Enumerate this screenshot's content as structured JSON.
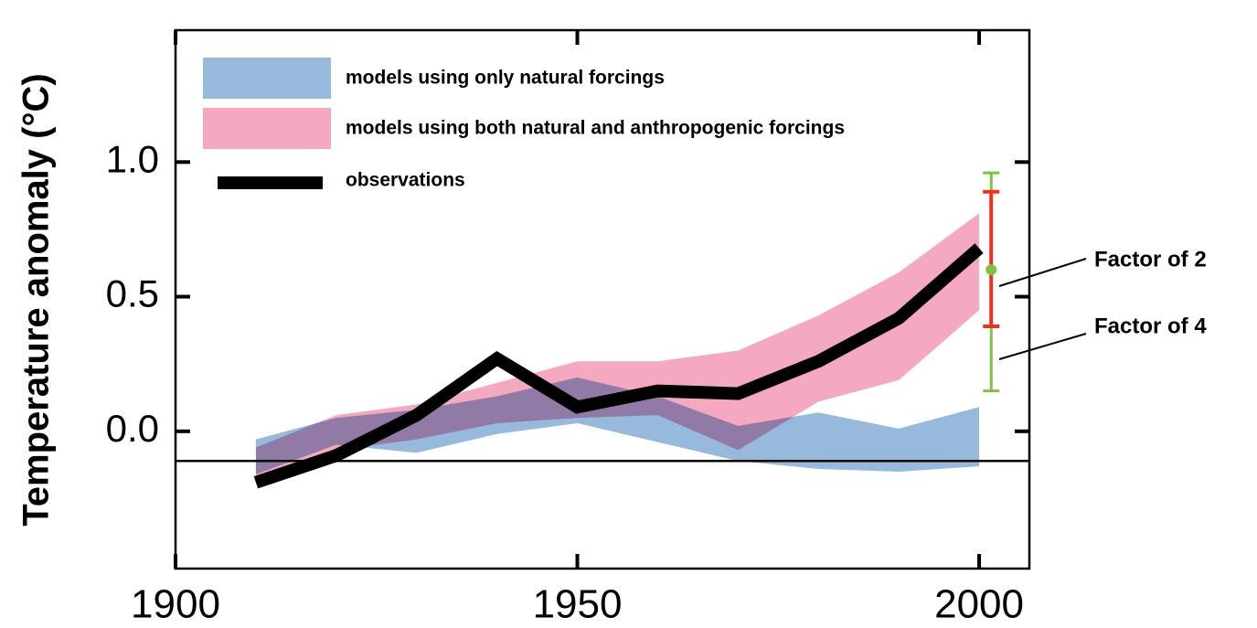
{
  "chart_data": {
    "type": "band_line",
    "y_label": "Temperature anomaly (°C)",
    "x": [
      1910,
      1920,
      1930,
      1940,
      1950,
      1960,
      1970,
      1980,
      1990,
      2000
    ],
    "bands": [
      {
        "name": "models using only natural forcings",
        "color": "#97b9dc",
        "lower": [
          -0.16,
          -0.05,
          -0.08,
          -0.01,
          0.03,
          -0.04,
          -0.11,
          -0.14,
          -0.15,
          -0.13
        ],
        "upper": [
          -0.03,
          0.05,
          0.08,
          0.13,
          0.2,
          0.13,
          0.02,
          0.07,
          0.01,
          0.09
        ]
      },
      {
        "name": "models using both natural and anthropogenic forcings",
        "color": "#f5a9c1",
        "lower": [
          -0.18,
          -0.07,
          -0.03,
          0.03,
          0.05,
          0.06,
          -0.07,
          0.11,
          0.19,
          0.45
        ],
        "upper": [
          -0.06,
          0.06,
          0.1,
          0.18,
          0.26,
          0.26,
          0.3,
          0.43,
          0.59,
          0.81
        ]
      }
    ],
    "series": [
      {
        "name": "observations",
        "color": "#000000",
        "values": [
          -0.19,
          -0.09,
          0.06,
          0.27,
          0.09,
          0.15,
          0.14,
          0.26,
          0.42,
          0.68
        ]
      }
    ],
    "error_bars": [
      {
        "name": "Factor of 2",
        "color": "#e8341c",
        "x": 2001.5,
        "value": 0.6,
        "low": 0.39,
        "high": 0.89
      },
      {
        "name": "Factor of 4",
        "color": "#7dc242",
        "x": 2001.5,
        "value": 0.6,
        "low": 0.15,
        "high": 0.96
      }
    ],
    "reference_line": -0.11,
    "xlim": [
      1900,
      2006.25
    ],
    "ylim": [
      -0.51,
      1.49
    ],
    "xticks": [
      1900,
      1950,
      2000
    ],
    "yticks": [
      {
        "value": 0,
        "label": "0.0"
      },
      0.5,
      {
        "value": 1,
        "label": "1.0"
      }
    ]
  }
}
